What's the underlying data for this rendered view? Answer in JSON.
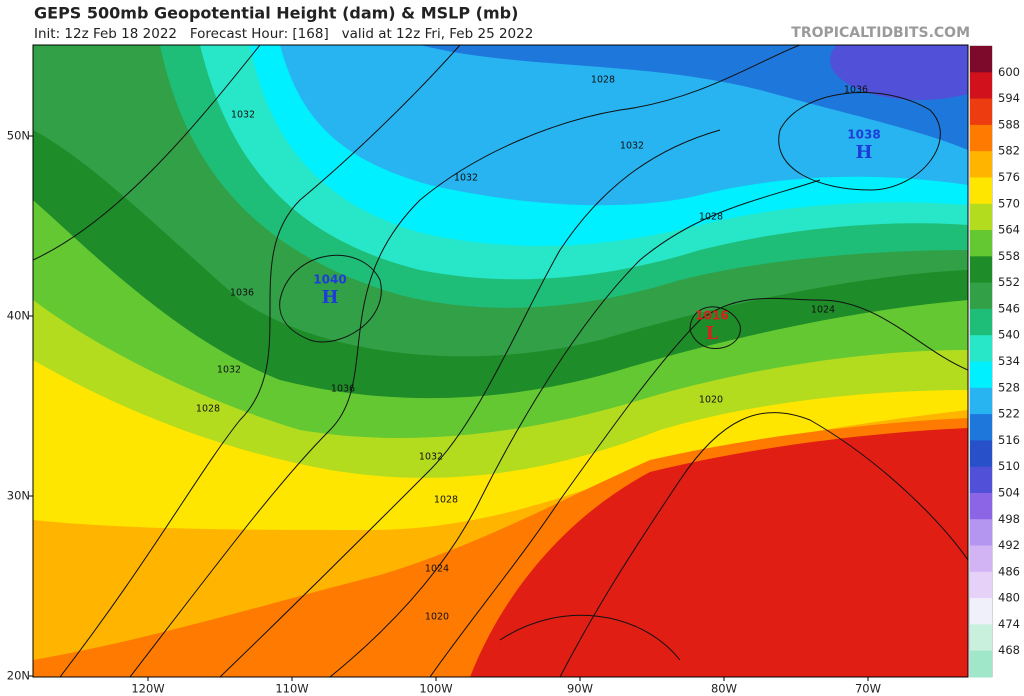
{
  "header": {
    "title": "GEPS 500mb Geopotential Height (dam) & MSLP (mb)",
    "subtitle": "Init: 12z Feb 18 2022   Forecast Hour: [168]   valid at 12z Fri, Feb 25 2022",
    "brand": "TROPICALTIDBITS.COM"
  },
  "latitude_labels": [
    "50N",
    "40N",
    "30N",
    "20N"
  ],
  "longitude_labels": [
    "120W",
    "110W",
    "100W",
    "90W",
    "80W",
    "70W"
  ],
  "colorbar_labels": [
    "600",
    "594",
    "588",
    "582",
    "576",
    "570",
    "564",
    "558",
    "552",
    "546",
    "540",
    "534",
    "528",
    "522",
    "516",
    "510",
    "504",
    "498",
    "492",
    "486",
    "480",
    "474",
    "468"
  ],
  "contour_labels": [
    "1028",
    "1032",
    "1032",
    "1032",
    "1028",
    "1036",
    "1032",
    "1036",
    "1028",
    "1020",
    "1032",
    "1028",
    "1024",
    "1020",
    "1024",
    "1036"
  ],
  "pressure_centers": [
    {
      "value": "1040",
      "letter": "H"
    },
    {
      "value": "1038",
      "letter": "H"
    },
    {
      "value": "1016",
      "letter": "L"
    }
  ]
}
